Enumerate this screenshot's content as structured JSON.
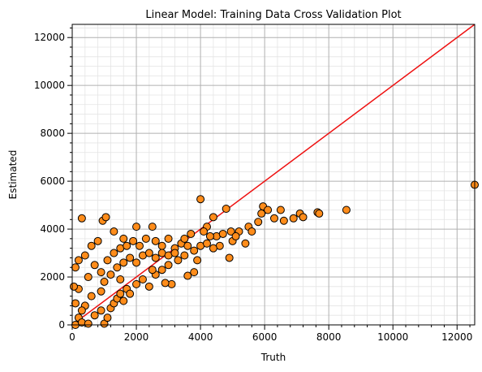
{
  "chart_data": {
    "type": "scatter",
    "title": "Linear Model: Training Data Cross Validation Plot",
    "xlabel": "Truth",
    "ylabel": "Estimated",
    "xlim": [
      0,
      12550
    ],
    "ylim": [
      0,
      12550
    ],
    "xticks": [
      0,
      2000,
      4000,
      6000,
      8000,
      10000,
      12000
    ],
    "yticks": [
      0,
      2000,
      4000,
      6000,
      8000,
      10000,
      12000
    ],
    "xminorticks": [
      400,
      800,
      1200,
      1600,
      2400,
      2800,
      3200,
      3600,
      4400,
      4800,
      5200,
      5600,
      6400,
      6800,
      7200,
      7600,
      8400,
      8800,
      9200,
      9600,
      10400,
      10800,
      11200,
      11600,
      12400
    ],
    "yminorticks": [
      400,
      800,
      1200,
      1600,
      2400,
      2800,
      3200,
      3600,
      4400,
      4800,
      5200,
      5600,
      6400,
      6800,
      7200,
      7600,
      8400,
      8800,
      9200,
      9600,
      10400,
      10800,
      11200,
      11600,
      12400
    ],
    "grid": true,
    "minor_grid": true,
    "color": "#ff8c1a",
    "edgecolor": "#000000",
    "line_color": "#ee1111",
    "x": [
      12550,
      8550,
      7650,
      7700,
      7100,
      7200,
      6900,
      6500,
      6600,
      6300,
      6000,
      5950,
      5900,
      6100,
      5800,
      5500,
      5200,
      5400,
      4900,
      4950,
      4800,
      4000,
      4400,
      4200,
      3800,
      3600,
      3900,
      3100,
      2900,
      300,
      950,
      1050,
      1600,
      1300,
      2000,
      2500,
      3000,
      3400,
      4500,
      5000,
      4600,
      100,
      200,
      400,
      600,
      800,
      200,
      500,
      700,
      900,
      1100,
      1300,
      1500,
      1700,
      1900,
      2100,
      2300,
      2600,
      2800,
      3200,
      3500,
      3700,
      4100,
      4300,
      4700,
      5100,
      5600,
      100,
      200,
      300,
      500,
      700,
      900,
      1000,
      1100,
      1200,
      1300,
      1400,
      1500,
      1600,
      1700,
      1800,
      2000,
      2200,
      2400,
      2600,
      2800,
      3000,
      3300,
      3500,
      3800,
      4000,
      4200,
      4400,
      1000,
      1200,
      1400,
      1600,
      1800,
      2000,
      2200,
      2400,
      2600,
      2800,
      3000,
      3200,
      600,
      400,
      300,
      100,
      50,
      1500,
      2500,
      3600,
      900
    ],
    "y": [
      5850,
      4800,
      4700,
      4650,
      4650,
      4500,
      4450,
      4800,
      4350,
      4450,
      4800,
      4950,
      4650,
      4800,
      4300,
      4100,
      3900,
      3400,
      2800,
      3900,
      4850,
      5250,
      4500,
      4100,
      2200,
      2050,
      2700,
      1700,
      1750,
      4450,
      4350,
      4500,
      3600,
      3900,
      4100,
      4100,
      3600,
      3400,
      3700,
      3500,
      3300,
      2400,
      2700,
      2900,
      3300,
      3500,
      1500,
      2000,
      2500,
      2200,
      2700,
      3000,
      3200,
      3300,
      3500,
      3300,
      3600,
      3500,
      3300,
      3200,
      3600,
      3800,
      3900,
      3700,
      3800,
      3700,
      3900,
      0,
      300,
      100,
      50,
      400,
      600,
      50,
      300,
      700,
      900,
      1100,
      1300,
      1000,
      1500,
      1300,
      1700,
      1900,
      1600,
      2100,
      2300,
      2500,
      2700,
      2900,
      3100,
      3300,
      3400,
      3200,
      1800,
      2100,
      2400,
      2600,
      2800,
      2600,
      2900,
      3000,
      2800,
      3000,
      2900,
      3000,
      1200,
      800,
      600,
      900,
      1600,
      1900,
      2300,
      3300,
      1400
    ]
  }
}
